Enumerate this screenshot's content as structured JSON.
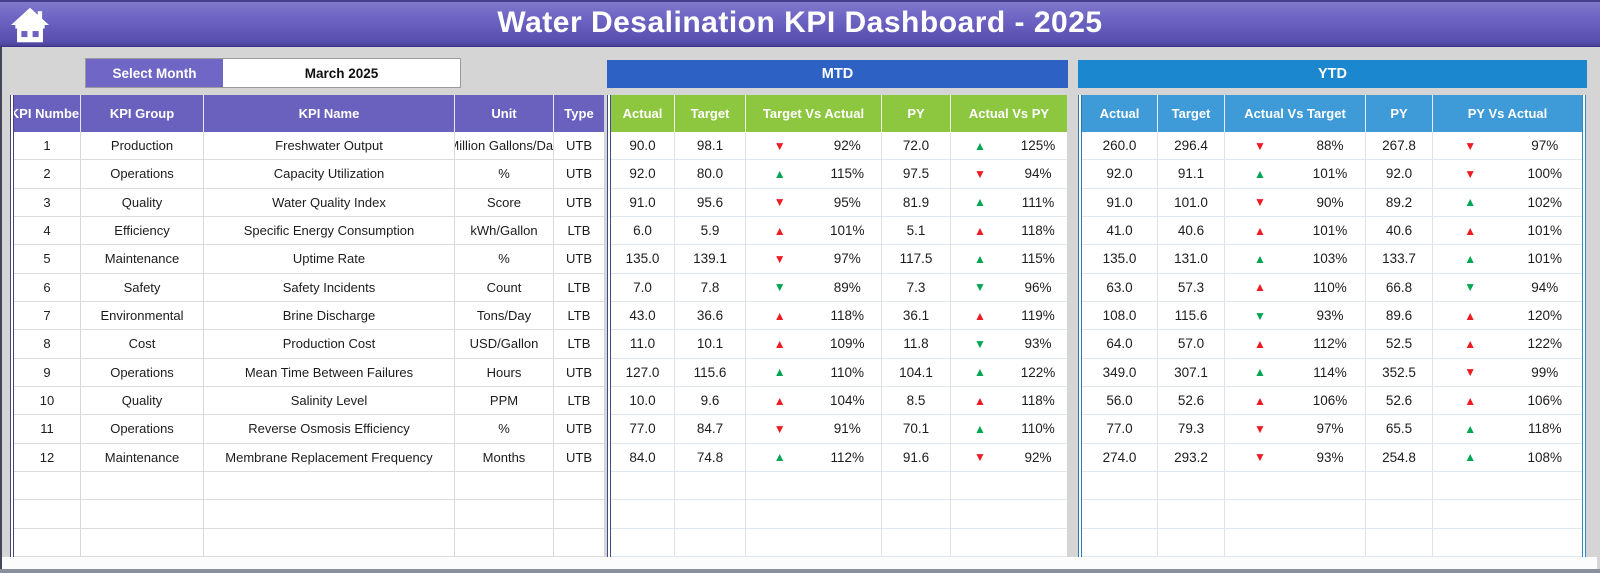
{
  "title": "Water Desalination KPI Dashboard - 2025",
  "controls": {
    "select_month_label": "Select Month",
    "selected_month": "March 2025"
  },
  "icons": {
    "home": "house",
    "up_arrow": "▲",
    "down_arrow": "▼"
  },
  "colors": {
    "title_bar": "#6b62c2",
    "kpi_header": "#6a61bf",
    "select_month": "#6f66c6",
    "mtd_band": "#2d62c4",
    "mtd_header": "#8dc63f",
    "ytd_band": "#1b87ce",
    "ytd_header": "#3f9ad8",
    "good": "#00a651",
    "bad": "#ed1c24"
  },
  "left_table": {
    "headers": [
      "KPI Number",
      "KPI Group",
      "KPI Name",
      "Unit",
      "Type"
    ]
  },
  "mtd": {
    "band": "MTD",
    "headers": [
      "Actual",
      "Target",
      "Target Vs Actual",
      "PY",
      "Actual Vs PY"
    ]
  },
  "ytd": {
    "band": "YTD",
    "headers": [
      "Actual",
      "Target",
      "Actual Vs Target",
      "PY",
      "PY Vs Actual"
    ]
  },
  "empty_row_count": 3,
  "rows": [
    {
      "n": "1",
      "group": "Production",
      "name": "Freshwater Output",
      "unit": "Million Gallons/Day",
      "type": "UTB",
      "mtd": [
        "90.0",
        "98.1",
        {
          "d": "down",
          "c": "red",
          "v": "92%"
        },
        "72.0",
        {
          "d": "up",
          "c": "green",
          "v": "125%"
        }
      ],
      "ytd": [
        "260.0",
        "296.4",
        {
          "d": "down",
          "c": "red",
          "v": "88%"
        },
        "267.8",
        {
          "d": "down",
          "c": "red",
          "v": "97%"
        }
      ]
    },
    {
      "n": "2",
      "group": "Operations",
      "name": "Capacity Utilization",
      "unit": "%",
      "type": "UTB",
      "mtd": [
        "92.0",
        "80.0",
        {
          "d": "up",
          "c": "green",
          "v": "115%"
        },
        "97.5",
        {
          "d": "down",
          "c": "red",
          "v": "94%"
        }
      ],
      "ytd": [
        "92.0",
        "91.1",
        {
          "d": "up",
          "c": "green",
          "v": "101%"
        },
        "92.0",
        {
          "d": "down",
          "c": "red",
          "v": "100%"
        }
      ]
    },
    {
      "n": "3",
      "group": "Quality",
      "name": "Water Quality Index",
      "unit": "Score",
      "type": "UTB",
      "mtd": [
        "91.0",
        "95.6",
        {
          "d": "down",
          "c": "red",
          "v": "95%"
        },
        "81.9",
        {
          "d": "up",
          "c": "green",
          "v": "111%"
        }
      ],
      "ytd": [
        "91.0",
        "101.0",
        {
          "d": "down",
          "c": "red",
          "v": "90%"
        },
        "89.2",
        {
          "d": "up",
          "c": "green",
          "v": "102%"
        }
      ]
    },
    {
      "n": "4",
      "group": "Efficiency",
      "name": "Specific Energy Consumption",
      "unit": "kWh/Gallon",
      "type": "LTB",
      "mtd": [
        "6.0",
        "5.9",
        {
          "d": "up",
          "c": "red",
          "v": "101%"
        },
        "5.1",
        {
          "d": "up",
          "c": "red",
          "v": "118%"
        }
      ],
      "ytd": [
        "41.0",
        "40.6",
        {
          "d": "up",
          "c": "red",
          "v": "101%"
        },
        "40.6",
        {
          "d": "up",
          "c": "red",
          "v": "101%"
        }
      ]
    },
    {
      "n": "5",
      "group": "Maintenance",
      "name": "Uptime Rate",
      "unit": "%",
      "type": "UTB",
      "mtd": [
        "135.0",
        "139.1",
        {
          "d": "down",
          "c": "red",
          "v": "97%"
        },
        "117.5",
        {
          "d": "up",
          "c": "green",
          "v": "115%"
        }
      ],
      "ytd": [
        "135.0",
        "131.0",
        {
          "d": "up",
          "c": "green",
          "v": "103%"
        },
        "133.7",
        {
          "d": "up",
          "c": "green",
          "v": "101%"
        }
      ]
    },
    {
      "n": "6",
      "group": "Safety",
      "name": "Safety Incidents",
      "unit": "Count",
      "type": "LTB",
      "mtd": [
        "7.0",
        "7.8",
        {
          "d": "down",
          "c": "green",
          "v": "89%"
        },
        "7.3",
        {
          "d": "down",
          "c": "green",
          "v": "96%"
        }
      ],
      "ytd": [
        "63.0",
        "57.3",
        {
          "d": "up",
          "c": "red",
          "v": "110%"
        },
        "66.8",
        {
          "d": "down",
          "c": "green",
          "v": "94%"
        }
      ]
    },
    {
      "n": "7",
      "group": "Environmental",
      "name": "Brine Discharge",
      "unit": "Tons/Day",
      "type": "LTB",
      "mtd": [
        "43.0",
        "36.6",
        {
          "d": "up",
          "c": "red",
          "v": "118%"
        },
        "36.1",
        {
          "d": "up",
          "c": "red",
          "v": "119%"
        }
      ],
      "ytd": [
        "108.0",
        "115.6",
        {
          "d": "down",
          "c": "green",
          "v": "93%"
        },
        "89.6",
        {
          "d": "up",
          "c": "red",
          "v": "120%"
        }
      ]
    },
    {
      "n": "8",
      "group": "Cost",
      "name": "Production Cost",
      "unit": "USD/Gallon",
      "type": "LTB",
      "mtd": [
        "11.0",
        "10.1",
        {
          "d": "up",
          "c": "red",
          "v": "109%"
        },
        "11.8",
        {
          "d": "down",
          "c": "green",
          "v": "93%"
        }
      ],
      "ytd": [
        "64.0",
        "57.0",
        {
          "d": "up",
          "c": "red",
          "v": "112%"
        },
        "52.5",
        {
          "d": "up",
          "c": "red",
          "v": "122%"
        }
      ]
    },
    {
      "n": "9",
      "group": "Operations",
      "name": "Mean Time Between Failures",
      "unit": "Hours",
      "type": "UTB",
      "mtd": [
        "127.0",
        "115.6",
        {
          "d": "up",
          "c": "green",
          "v": "110%"
        },
        "104.1",
        {
          "d": "up",
          "c": "green",
          "v": "122%"
        }
      ],
      "ytd": [
        "349.0",
        "307.1",
        {
          "d": "up",
          "c": "green",
          "v": "114%"
        },
        "352.5",
        {
          "d": "down",
          "c": "red",
          "v": "99%"
        }
      ]
    },
    {
      "n": "10",
      "group": "Quality",
      "name": "Salinity Level",
      "unit": "PPM",
      "type": "LTB",
      "mtd": [
        "10.0",
        "9.6",
        {
          "d": "up",
          "c": "red",
          "v": "104%"
        },
        "8.5",
        {
          "d": "up",
          "c": "red",
          "v": "118%"
        }
      ],
      "ytd": [
        "56.0",
        "52.6",
        {
          "d": "up",
          "c": "red",
          "v": "106%"
        },
        "52.6",
        {
          "d": "up",
          "c": "red",
          "v": "106%"
        }
      ]
    },
    {
      "n": "11",
      "group": "Operations",
      "name": "Reverse Osmosis Efficiency",
      "unit": "%",
      "type": "UTB",
      "mtd": [
        "77.0",
        "84.7",
        {
          "d": "down",
          "c": "red",
          "v": "91%"
        },
        "70.1",
        {
          "d": "up",
          "c": "green",
          "v": "110%"
        }
      ],
      "ytd": [
        "77.0",
        "79.3",
        {
          "d": "down",
          "c": "red",
          "v": "97%"
        },
        "65.5",
        {
          "d": "up",
          "c": "green",
          "v": "118%"
        }
      ]
    },
    {
      "n": "12",
      "group": "Maintenance",
      "name": "Membrane Replacement Frequency",
      "unit": "Months",
      "type": "UTB",
      "mtd": [
        "84.0",
        "74.8",
        {
          "d": "up",
          "c": "green",
          "v": "112%"
        },
        "91.6",
        {
          "d": "down",
          "c": "red",
          "v": "92%"
        }
      ],
      "ytd": [
        "274.0",
        "293.2",
        {
          "d": "down",
          "c": "red",
          "v": "93%"
        },
        "254.8",
        {
          "d": "up",
          "c": "green",
          "v": "108%"
        }
      ]
    }
  ]
}
